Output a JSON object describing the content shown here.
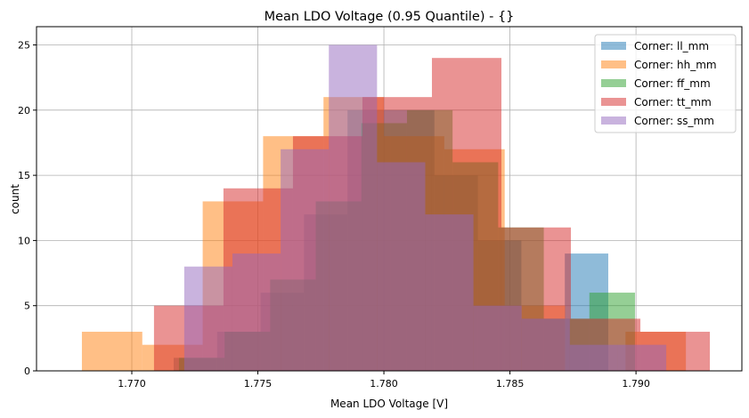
{
  "chart_data": {
    "type": "bar",
    "title": "Mean LDO Voltage (0.95 Quantile) - {}",
    "xlabel": "Mean LDO Voltage [V]",
    "ylabel": "count",
    "xlim": [
      1.76622,
      1.7942
    ],
    "ylim": [
      0,
      26.4
    ],
    "xticks": [
      "1.770",
      "1.775",
      "1.780",
      "1.785",
      "1.790"
    ],
    "yticks": [
      "0",
      "5",
      "10",
      "15",
      "20",
      "25"
    ],
    "grid": true,
    "legend_position": "top-right",
    "alpha": 0.5,
    "series": [
      {
        "name": "Corner: ll_mm",
        "color": "#1f77b4",
        "range": [
          1.77166,
          1.7889
        ],
        "counts": [
          1,
          3,
          6,
          12,
          20,
          20,
          15,
          10,
          4,
          9
        ]
      },
      {
        "name": "Corner: hh_mm",
        "color": "#ff7f0e",
        "range": [
          1.76802,
          1.79198
        ],
        "counts": [
          3,
          2,
          13,
          18,
          21,
          18,
          17,
          5,
          0,
          3
        ]
      },
      {
        "name": "Corner: ff_mm",
        "color": "#2ca02c",
        "range": [
          1.77187,
          1.78996
        ],
        "counts": [
          1,
          3,
          7,
          13,
          19,
          20,
          16,
          11,
          4,
          6
        ]
      },
      {
        "name": "Corner: tt_mm",
        "color": "#d62728",
        "range": [
          1.77088,
          1.79293
        ],
        "counts": [
          5,
          14,
          18,
          21,
          24,
          11,
          4,
          3
        ]
      },
      {
        "name": "Corner: ss_mm",
        "color": "#9467bd",
        "range": [
          1.77208,
          1.7912
        ],
        "counts": [
          8,
          9,
          17,
          25,
          16,
          12,
          5,
          4,
          2,
          2
        ]
      }
    ]
  }
}
